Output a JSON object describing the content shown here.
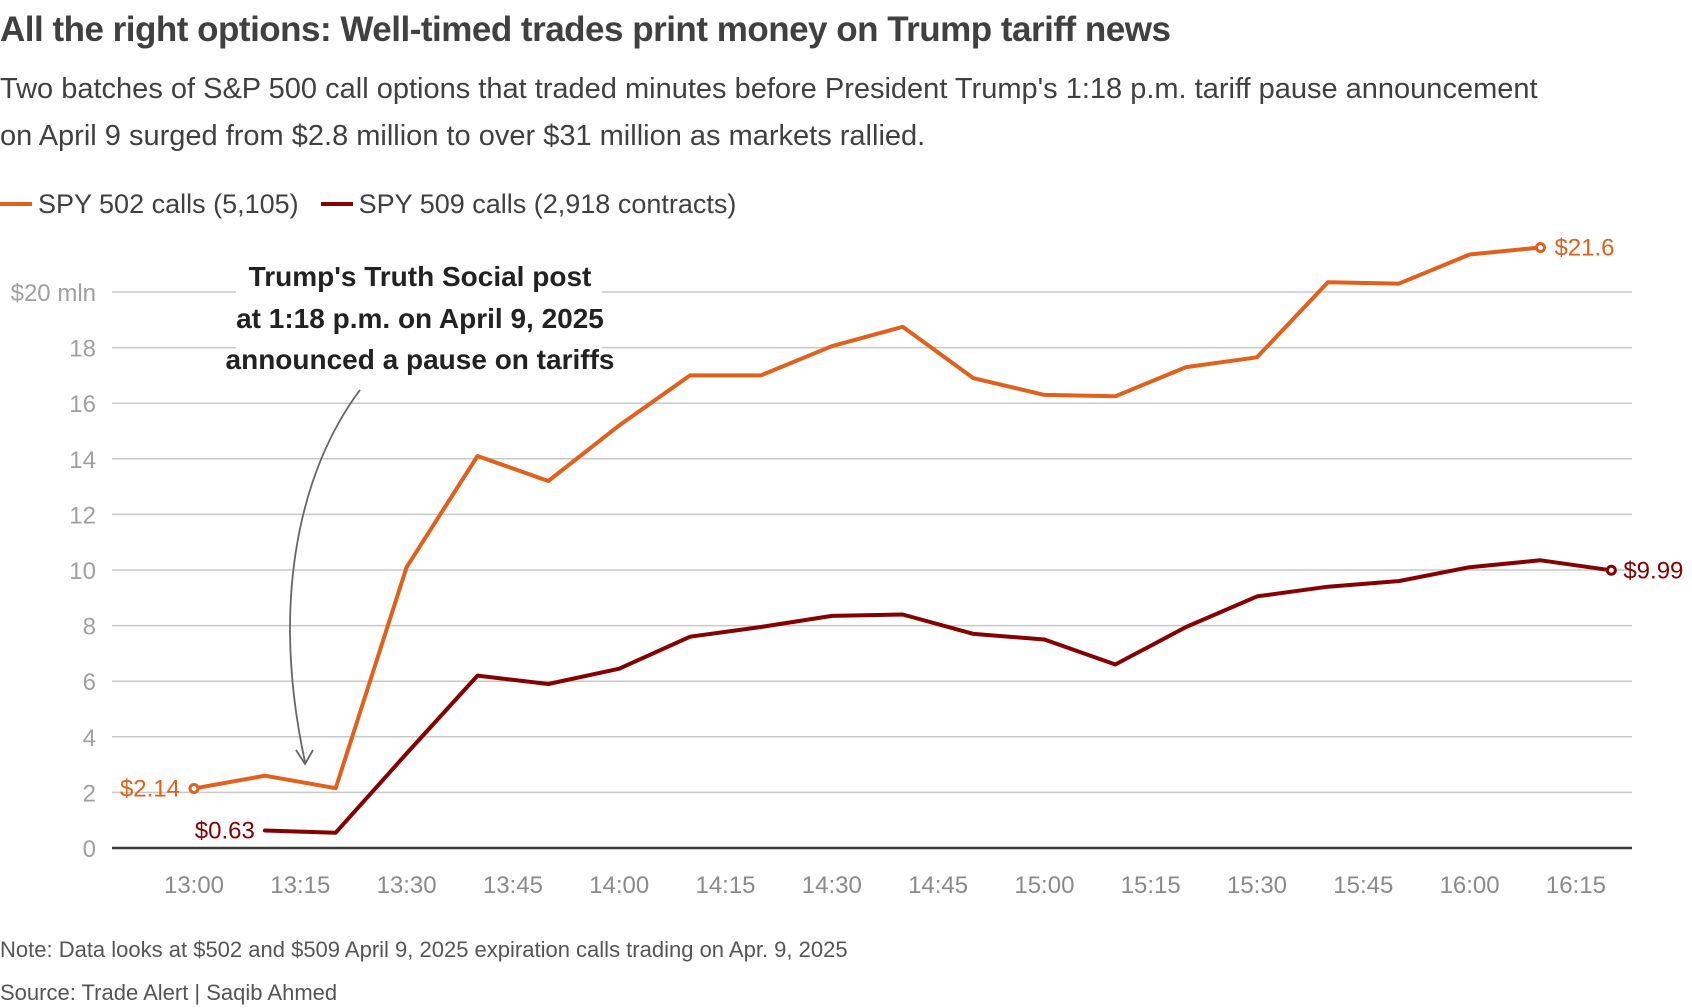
{
  "header": {
    "title": "All the right options: Well-timed trades print money on Trump tariff news",
    "subtitle": "Two batches of S&P 500 call options that traded minutes before President Trump's 1:18 p.m. tariff pause announcement on April 9 surged from $2.8 million to over $31 million as markets rallied."
  },
  "legend": [
    {
      "label": "SPY 502 calls (5,105)",
      "color": "#e0601c"
    },
    {
      "label": "SPY 509 calls (2,918 contracts)",
      "color": "#850000"
    }
  ],
  "footer": {
    "note": "Note: Data looks at $502 and $509 April 9, 2025 expiration calls trading on Apr. 9, 2025",
    "source": "Source: Trade Alert | Saqib Ahmed"
  },
  "chart_data": {
    "type": "line",
    "title": "All the right options: Well-timed trades print money on Trump tariff news",
    "xlabel": "",
    "ylabel": "$ mln",
    "x_ticks": [
      "13:00",
      "13:15",
      "13:30",
      "13:45",
      "14:00",
      "14:15",
      "14:30",
      "14:45",
      "15:00",
      "15:15",
      "15:30",
      "15:45",
      "16:00",
      "16:15"
    ],
    "x_range_minutes": [
      780,
      980
    ],
    "y_ticks": [
      0,
      2,
      4,
      6,
      8,
      10,
      12,
      14,
      16,
      18,
      20
    ],
    "y_tick_labels": [
      "0",
      "2",
      "4",
      "6",
      "8",
      "10",
      "12",
      "14",
      "16",
      "18",
      "$20 mln"
    ],
    "ylim": [
      0,
      20
    ],
    "grid": true,
    "legend_position": "top-left",
    "series": [
      {
        "name": "SPY 502 calls (5,105)",
        "color": "#e0601c",
        "x": [
          "13:00",
          "13:10",
          "13:20",
          "13:30",
          "13:40",
          "13:50",
          "14:00",
          "14:10",
          "14:20",
          "14:30",
          "14:40",
          "14:50",
          "15:00",
          "15:10",
          "15:20",
          "15:30",
          "15:40",
          "15:50",
          "16:00",
          "16:10"
        ],
        "values": [
          2.14,
          2.6,
          2.15,
          10.1,
          14.1,
          13.2,
          15.2,
          17.0,
          17.0,
          18.05,
          18.75,
          16.9,
          16.3,
          16.25,
          17.3,
          17.65,
          20.35,
          20.3,
          21.35,
          21.6
        ],
        "start_label": "$2.14",
        "end_label": "$21.6"
      },
      {
        "name": "SPY 509 calls (2,918 contracts)",
        "color": "#850000",
        "x": [
          "13:10",
          "13:20",
          "13:30",
          "13:40",
          "13:50",
          "14:00",
          "14:10",
          "14:20",
          "14:30",
          "14:40",
          "14:50",
          "15:00",
          "15:10",
          "15:20",
          "15:30",
          "15:40",
          "15:50",
          "16:00",
          "16:10",
          "16:20"
        ],
        "values": [
          0.63,
          0.55,
          3.4,
          6.2,
          5.9,
          6.45,
          7.6,
          7.95,
          8.35,
          8.4,
          7.7,
          7.5,
          6.6,
          7.95,
          9.05,
          9.4,
          9.6,
          10.1,
          10.35,
          9.99
        ],
        "start_label": "$0.63",
        "end_label": "$9.99"
      }
    ],
    "annotations": [
      {
        "text_lines": [
          "Trump's Truth Social post",
          "at 1:18 p.m. on April 9, 2025",
          "announced a pause on tariffs"
        ],
        "points_to": "13:18"
      }
    ]
  }
}
